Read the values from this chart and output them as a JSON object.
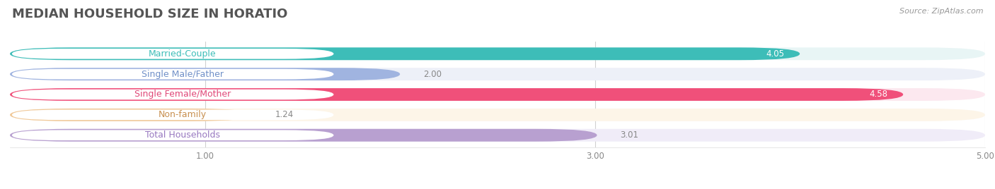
{
  "title": "MEDIAN HOUSEHOLD SIZE IN HORATIO",
  "source": "Source: ZipAtlas.com",
  "categories": [
    "Married-Couple",
    "Single Male/Father",
    "Single Female/Mother",
    "Non-family",
    "Total Households"
  ],
  "values": [
    4.05,
    2.0,
    4.58,
    1.24,
    3.01
  ],
  "bar_colors": [
    "#3dbdb8",
    "#a0b4e0",
    "#f0507a",
    "#f0c898",
    "#b8a0d0"
  ],
  "bg_colors": [
    "#e8f5f5",
    "#edf0f8",
    "#fce8ef",
    "#fdf5e8",
    "#f0ecf8"
  ],
  "label_text_colors": [
    "#3dbdb8",
    "#7090c8",
    "#e04878",
    "#c89050",
    "#9878c0"
  ],
  "xlim": [
    0,
    5.0
  ],
  "xticks": [
    1.0,
    3.0,
    5.0
  ],
  "xtick_labels": [
    "1.00",
    "3.00",
    "5.00"
  ],
  "bar_height": 0.62,
  "title_fontsize": 13,
  "label_fontsize": 9,
  "value_fontsize": 8.5,
  "source_fontsize": 8,
  "figsize": [
    14.06,
    2.68
  ],
  "dpi": 100
}
